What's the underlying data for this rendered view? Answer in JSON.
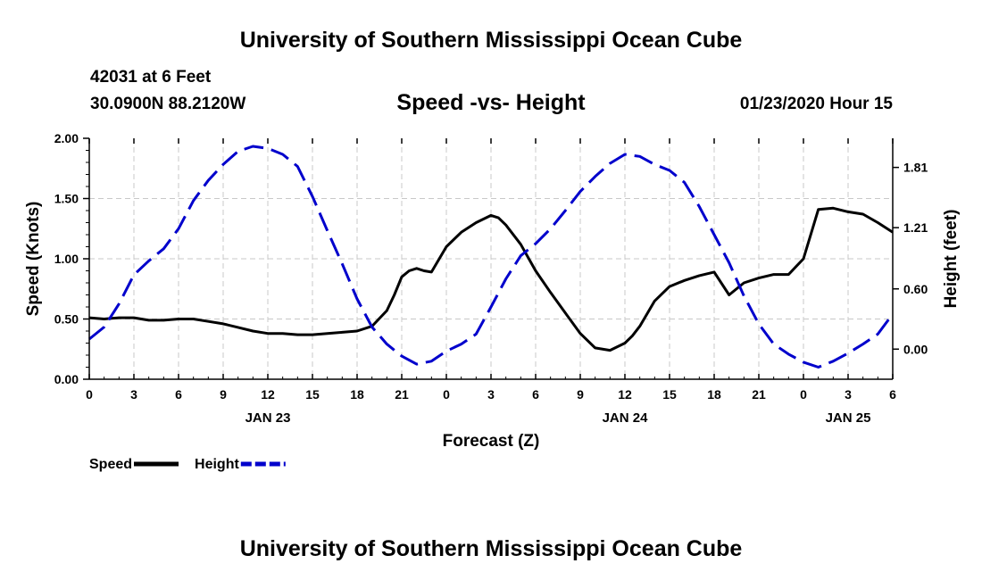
{
  "header": {
    "title": "University of Southern Mississippi Ocean Cube",
    "station_id": "42031 at 6 Feet",
    "coordinates": "30.0900N 88.2120W",
    "chart_title": "Speed -vs- Height",
    "issued": "01/23/2020 Hour 15"
  },
  "footer": {
    "title": "University of Southern Mississippi Ocean Cube"
  },
  "chart_data": {
    "type": "line",
    "title": "Speed -vs- Height",
    "xlabel": "Forecast (Z)",
    "ylabel": "Speed (Knots)",
    "y2label": "Height (feet)",
    "xlim": [
      0,
      54
    ],
    "ylim": [
      0,
      2.0
    ],
    "y2lim": [
      -0.3,
      2.1
    ],
    "grid": true,
    "x_tick_values": [
      0,
      3,
      6,
      9,
      12,
      15,
      18,
      21,
      24,
      27,
      30,
      33,
      36,
      39,
      42,
      45,
      48,
      51,
      54
    ],
    "x_tick_labels": [
      "0",
      "3",
      "6",
      "9",
      "12",
      "15",
      "18",
      "21",
      "0",
      "3",
      "6",
      "9",
      "12",
      "15",
      "18",
      "21",
      "0",
      "3",
      "6"
    ],
    "y_ticks": [
      "0.00",
      "0.50",
      "1.00",
      "1.50",
      "2.00"
    ],
    "y_tick_values": [
      0,
      0.5,
      1.0,
      1.5,
      2.0
    ],
    "y2_ticks": [
      "0.00",
      "0.60",
      "1.21",
      "1.81"
    ],
    "y2_tick_values": [
      0,
      0.6,
      1.21,
      1.81
    ],
    "date_labels": [
      {
        "label": "JAN 23",
        "x": 12
      },
      {
        "label": "JAN 24",
        "x": 36
      },
      {
        "label": "JAN 25",
        "x": 51
      }
    ],
    "series": [
      {
        "name": "Speed",
        "axis": "left",
        "color": "#000000",
        "dash": "solid",
        "x": [
          0,
          1,
          2,
          3,
          4,
          5,
          6,
          7,
          8,
          9,
          10,
          11,
          12,
          13,
          14,
          15,
          16,
          17,
          18,
          19,
          20,
          20.5,
          21,
          21.5,
          22,
          22.5,
          23,
          24,
          25,
          26,
          27,
          27.5,
          28,
          29,
          30,
          31,
          32,
          33,
          34,
          35,
          36,
          36.5,
          37,
          38,
          39,
          40,
          41,
          42,
          43,
          44,
          45,
          46,
          46.5,
          47,
          48,
          49,
          50,
          51,
          52,
          53,
          54
        ],
        "values": [
          0.51,
          0.5,
          0.51,
          0.51,
          0.49,
          0.49,
          0.5,
          0.5,
          0.48,
          0.46,
          0.43,
          0.4,
          0.38,
          0.38,
          0.37,
          0.37,
          0.38,
          0.39,
          0.4,
          0.44,
          0.57,
          0.7,
          0.85,
          0.9,
          0.92,
          0.9,
          0.89,
          1.1,
          1.22,
          1.3,
          1.36,
          1.34,
          1.28,
          1.12,
          0.9,
          0.72,
          0.55,
          0.38,
          0.26,
          0.24,
          0.3,
          0.36,
          0.44,
          0.65,
          0.77,
          0.82,
          0.86,
          0.89,
          0.7,
          0.8,
          0.84,
          0.87,
          0.87,
          0.87,
          1.0,
          1.41,
          1.42,
          1.39,
          1.37,
          1.3,
          1.22
        ]
      },
      {
        "name": "Height",
        "axis": "right",
        "color": "#0000cc",
        "dash": "dashed",
        "x": [
          0,
          1,
          2,
          3,
          4,
          5,
          6,
          7,
          8,
          9,
          10,
          11,
          12,
          13,
          14,
          15,
          16,
          17,
          18,
          19,
          20,
          21,
          22,
          23,
          24,
          25,
          26,
          27,
          28,
          29,
          30,
          31,
          32,
          33,
          34,
          35,
          36,
          37,
          38,
          39,
          40,
          41,
          42,
          43,
          44,
          45,
          46,
          47,
          48,
          49,
          50,
          51,
          52,
          53,
          54
        ],
        "values": [
          0.1,
          0.22,
          0.45,
          0.74,
          0.88,
          1.0,
          1.2,
          1.48,
          1.68,
          1.84,
          1.97,
          2.02,
          2.0,
          1.94,
          1.82,
          1.52,
          1.18,
          0.85,
          0.5,
          0.22,
          0.05,
          -0.07,
          -0.15,
          -0.12,
          -0.02,
          0.05,
          0.15,
          0.42,
          0.7,
          0.93,
          1.05,
          1.2,
          1.38,
          1.57,
          1.72,
          1.85,
          1.94,
          1.92,
          1.84,
          1.78,
          1.66,
          1.42,
          1.14,
          0.86,
          0.53,
          0.25,
          0.05,
          -0.05,
          -0.13,
          -0.18,
          -0.12,
          -0.04,
          0.05,
          0.15,
          0.35
        ]
      }
    ],
    "legend": {
      "placement": "bottom-left",
      "entries": [
        {
          "label": "Speed",
          "color": "#000000",
          "dash": "solid"
        },
        {
          "label": "Height",
          "color": "#0000cc",
          "dash": "dashed"
        }
      ]
    }
  }
}
